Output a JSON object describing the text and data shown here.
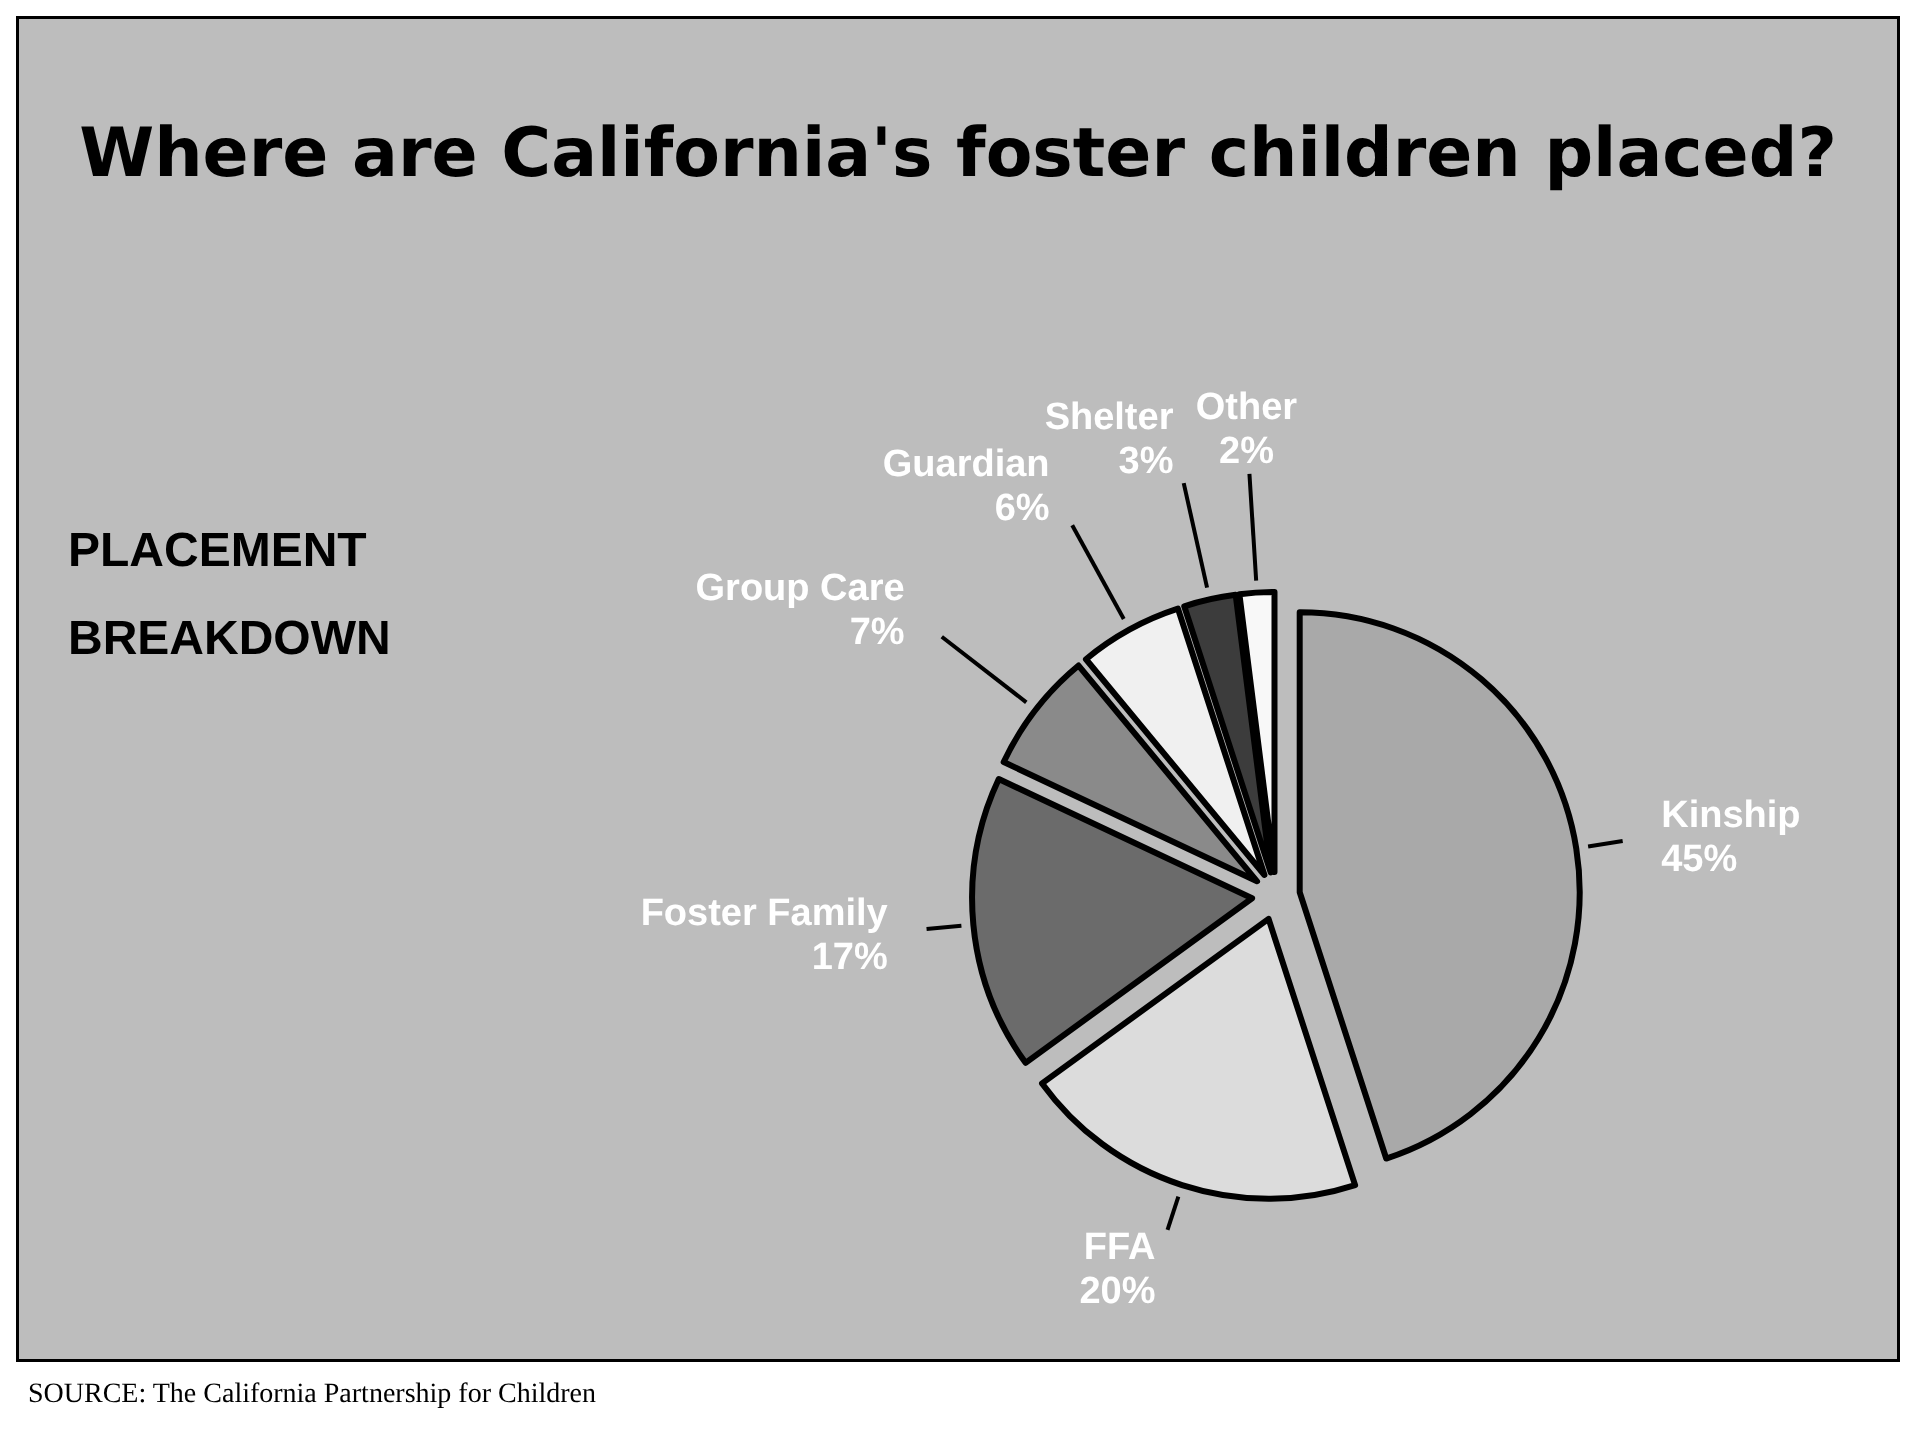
{
  "chart_data": {
    "type": "pie",
    "title": "Where are California's foster children placed?",
    "subtitle": "PLACEMENT BREAKDOWN",
    "categories": [
      "Kinship",
      "FFA",
      "Foster Family",
      "Group Care",
      "Guardian",
      "Shelter",
      "Other"
    ],
    "values": [
      45,
      20,
      17,
      7,
      6,
      3,
      2
    ],
    "value_labels": [
      "45%",
      "20%",
      "17%",
      "7%",
      "6%",
      "3%",
      "2%"
    ],
    "colors": [
      "#a9a9a9",
      "#dcdcdc",
      "#6b6b6b",
      "#8a8a8a",
      "#f0f0f0",
      "#3c3c3c",
      "#f8f8f8"
    ],
    "annotations": [
      "SOURCE: The California Partnership for Children"
    ]
  }
}
